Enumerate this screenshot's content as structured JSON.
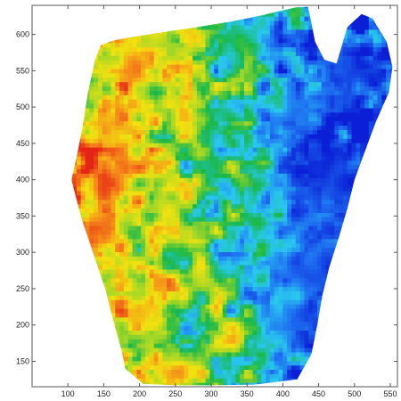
{
  "chart_data": {
    "type": "heatmap",
    "title": "",
    "xlabel": "",
    "ylabel": "",
    "xlim": [
      50,
      560
    ],
    "ylim": [
      115,
      640
    ],
    "x_ticks": [
      100,
      150,
      200,
      250,
      300,
      350,
      400,
      450,
      500,
      550
    ],
    "x_tick_labels": [
      "100",
      "150",
      "200",
      "250",
      "300",
      "350",
      "400",
      "450",
      "500",
      "550"
    ],
    "y_ticks": [
      150,
      200,
      250,
      300,
      350,
      400,
      450,
      500,
      550,
      600
    ],
    "y_tick_labels": [
      "150",
      "200",
      "250",
      "300",
      "350",
      "400",
      "450",
      "500",
      "550",
      "600"
    ],
    "colormap": [
      "#0a1fd6",
      "#1e6ff0",
      "#29c8f0",
      "#18b84a",
      "#9ed628",
      "#f2e20f",
      "#f58a1a",
      "#e42414"
    ],
    "grid": false,
    "legend": "none",
    "mask_boundary": [
      [
        146,
        585
      ],
      [
        165,
        592
      ],
      [
        200,
        598
      ],
      [
        240,
        604
      ],
      [
        280,
        610
      ],
      [
        330,
        618
      ],
      [
        365,
        625
      ],
      [
        395,
        632
      ],
      [
        418,
        637
      ],
      [
        435,
        638
      ],
      [
        440,
        616
      ],
      [
        445,
        590
      ],
      [
        458,
        565
      ],
      [
        475,
        560
      ],
      [
        490,
        610
      ],
      [
        510,
        628
      ],
      [
        525,
        622
      ],
      [
        545,
        590
      ],
      [
        553,
        555
      ],
      [
        548,
        520
      ],
      [
        530,
        480
      ],
      [
        515,
        440
      ],
      [
        500,
        400
      ],
      [
        490,
        360
      ],
      [
        478,
        320
      ],
      [
        465,
        280
      ],
      [
        455,
        240
      ],
      [
        448,
        200
      ],
      [
        440,
        160
      ],
      [
        420,
        125
      ],
      [
        360,
        118
      ],
      [
        300,
        117
      ],
      [
        250,
        117
      ],
      [
        205,
        119
      ],
      [
        180,
        140
      ],
      [
        175,
        165
      ],
      [
        165,
        200
      ],
      [
        152,
        250
      ],
      [
        135,
        300
      ],
      [
        118,
        350
      ],
      [
        105,
        400
      ],
      [
        112,
        430
      ],
      [
        120,
        470
      ],
      [
        128,
        520
      ],
      [
        138,
        565
      ],
      [
        146,
        585
      ]
    ],
    "hot_spots": [
      {
        "x": 192,
        "y": 555,
        "r": 30,
        "value": 0.97
      },
      {
        "x": 170,
        "y": 470,
        "r": 36,
        "value": 0.82
      },
      {
        "x": 158,
        "y": 395,
        "r": 32,
        "value": 0.95
      },
      {
        "x": 145,
        "y": 330,
        "r": 26,
        "value": 0.92
      },
      {
        "x": 255,
        "y": 135,
        "r": 24,
        "value": 0.98
      },
      {
        "x": 330,
        "y": 180,
        "r": 22,
        "value": 0.9
      },
      {
        "x": 265,
        "y": 480,
        "r": 26,
        "value": 0.78
      },
      {
        "x": 235,
        "y": 360,
        "r": 28,
        "value": 0.7
      },
      {
        "x": 290,
        "y": 265,
        "r": 22,
        "value": 0.66
      },
      {
        "x": 210,
        "y": 220,
        "r": 26,
        "value": 0.8
      },
      {
        "x": 340,
        "y": 590,
        "r": 22,
        "value": 0.62
      },
      {
        "x": 365,
        "y": 340,
        "r": 20,
        "value": 0.55
      }
    ],
    "cold_spots": [
      {
        "x": 470,
        "y": 400,
        "r": 70,
        "value": 0.05
      },
      {
        "x": 440,
        "y": 280,
        "r": 60,
        "value": 0.08
      },
      {
        "x": 500,
        "y": 550,
        "r": 40,
        "value": 0.08
      },
      {
        "x": 405,
        "y": 200,
        "r": 40,
        "value": 0.18
      },
      {
        "x": 420,
        "y": 500,
        "r": 40,
        "value": 0.2
      },
      {
        "x": 360,
        "y": 600,
        "r": 25,
        "value": 0.3
      },
      {
        "x": 300,
        "y": 420,
        "r": 20,
        "value": 0.38
      },
      {
        "x": 260,
        "y": 300,
        "r": 18,
        "value": 0.4
      }
    ]
  }
}
